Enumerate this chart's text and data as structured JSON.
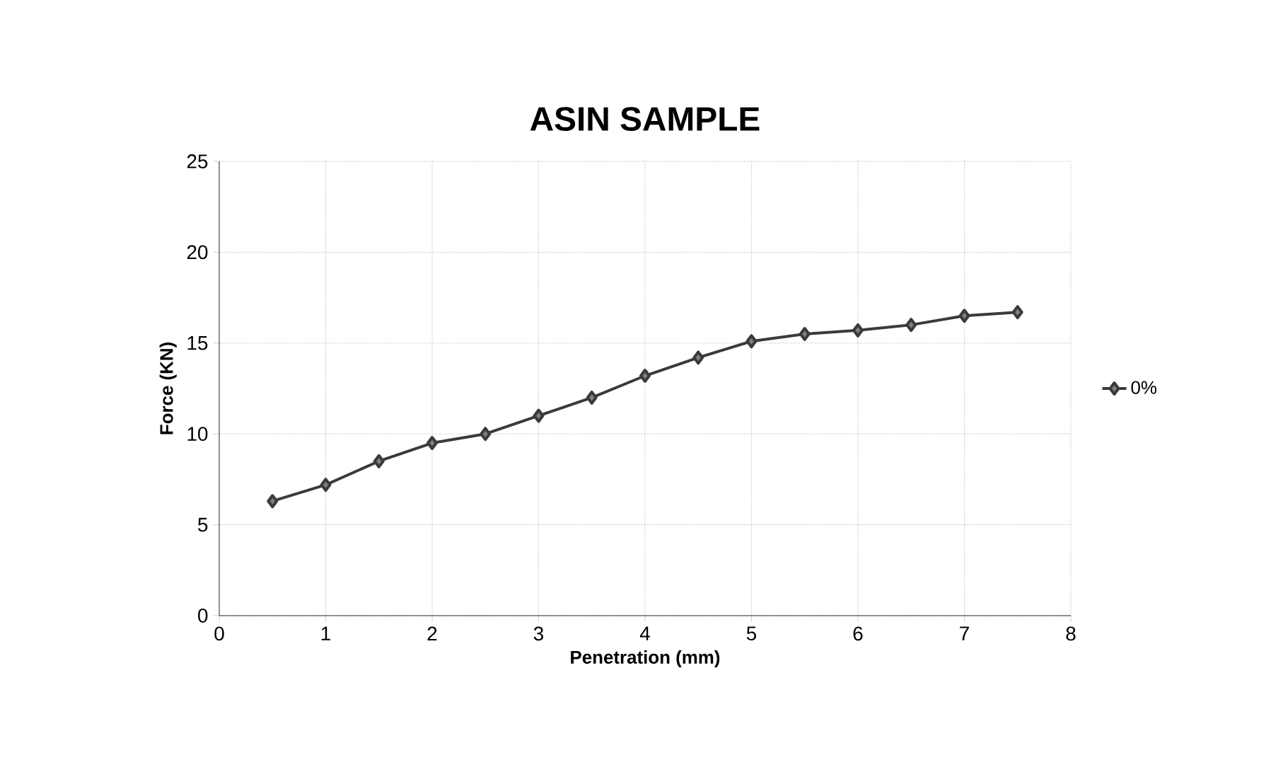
{
  "chart_data": {
    "type": "line",
    "title": "ASIN SAMPLE",
    "xlabel": "Penetration (mm)",
    "ylabel": "Force (KN)",
    "x": [
      0.5,
      1,
      1.5,
      2,
      2.5,
      3,
      3.5,
      4,
      4.5,
      5,
      5.5,
      6,
      6.5,
      7,
      7.5
    ],
    "series": [
      {
        "name": "0%",
        "color": "#3a3a3a",
        "values": [
          6.3,
          7.2,
          8.5,
          9.5,
          10.0,
          11.0,
          12.0,
          13.2,
          14.2,
          15.1,
          15.5,
          15.7,
          16.0,
          16.5,
          16.7
        ]
      }
    ],
    "xlim": [
      0,
      8
    ],
    "ylim": [
      0,
      25
    ],
    "xticks": [
      0,
      1,
      2,
      3,
      4,
      5,
      6,
      7,
      8
    ],
    "yticks": [
      0,
      5,
      10,
      15,
      20,
      25
    ],
    "grid": true,
    "legend": "right",
    "marker": "diamond",
    "line_style": "solid"
  }
}
